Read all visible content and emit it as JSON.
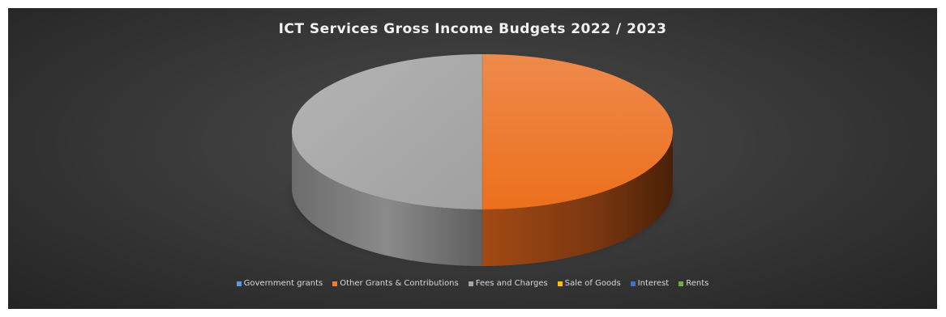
{
  "chart_data": {
    "type": "pie",
    "title": "ICT Services Gross Income Budgets 2022 / 2023",
    "series": [
      {
        "name": "Government grants",
        "value": 0,
        "color": "#5b9bd5"
      },
      {
        "name": "Other Grants & Contributions",
        "value": 50,
        "color": "#ed7d31"
      },
      {
        "name": "Fees and Charges",
        "value": 50,
        "color": "#a5a5a5"
      },
      {
        "name": "Sale of Goods",
        "value": 0,
        "color": "#ffc000"
      },
      {
        "name": "Interest",
        "value": 0,
        "color": "#4472c4"
      },
      {
        "name": "Rents",
        "value": 0,
        "color": "#70ad47"
      }
    ],
    "legend_position": "bottom",
    "three_d": true
  }
}
